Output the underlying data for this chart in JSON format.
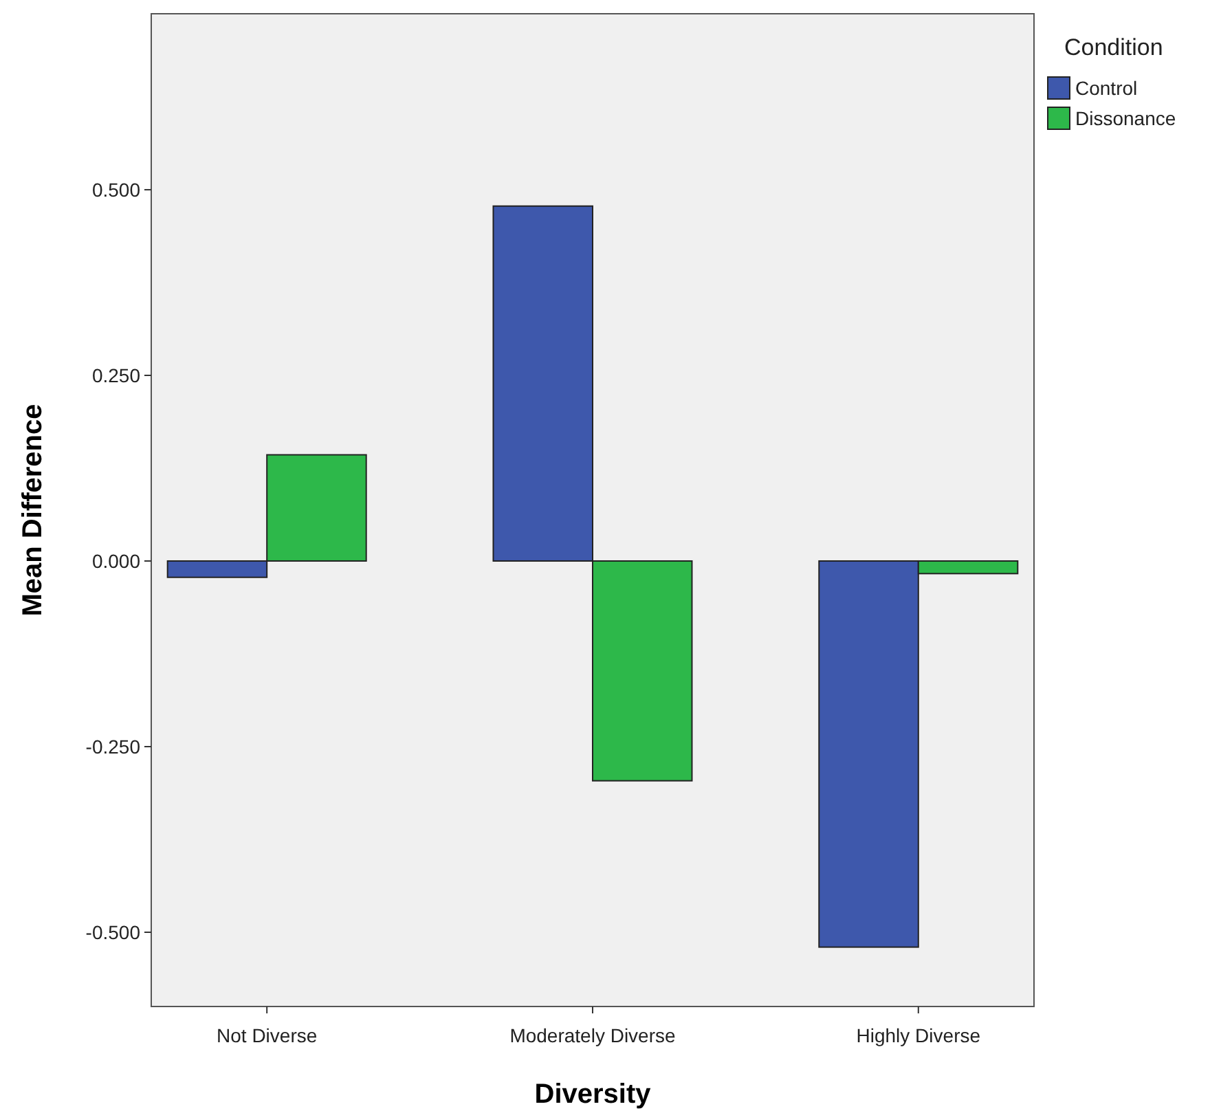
{
  "chart_data": {
    "type": "bar",
    "xlabel": "Diversity",
    "ylabel": "Mean Difference",
    "legend_title": "Condition",
    "legend": "top right",
    "categories": [
      "Not Diverse",
      "Moderately Diverse",
      "Highly Diverse"
    ],
    "series": [
      {
        "name": "Control",
        "color": "#3e58ac",
        "values": [
          -0.022,
          0.478,
          -0.52
        ]
      },
      {
        "name": "Dissonance",
        "color": "#2db84a",
        "values": [
          0.143,
          -0.296,
          -0.017
        ]
      }
    ],
    "ylim": [
      -0.6,
      0.737
    ],
    "yticks": [
      {
        "value": -0.5,
        "label": "-0.500"
      },
      {
        "value": -0.25,
        "label": "-0.250"
      },
      {
        "value": 0,
        "label": "0.000"
      },
      {
        "value": 0.25,
        "label": "0.250"
      },
      {
        "value": 0.5,
        "label": "0.500"
      }
    ],
    "grid": false
  }
}
